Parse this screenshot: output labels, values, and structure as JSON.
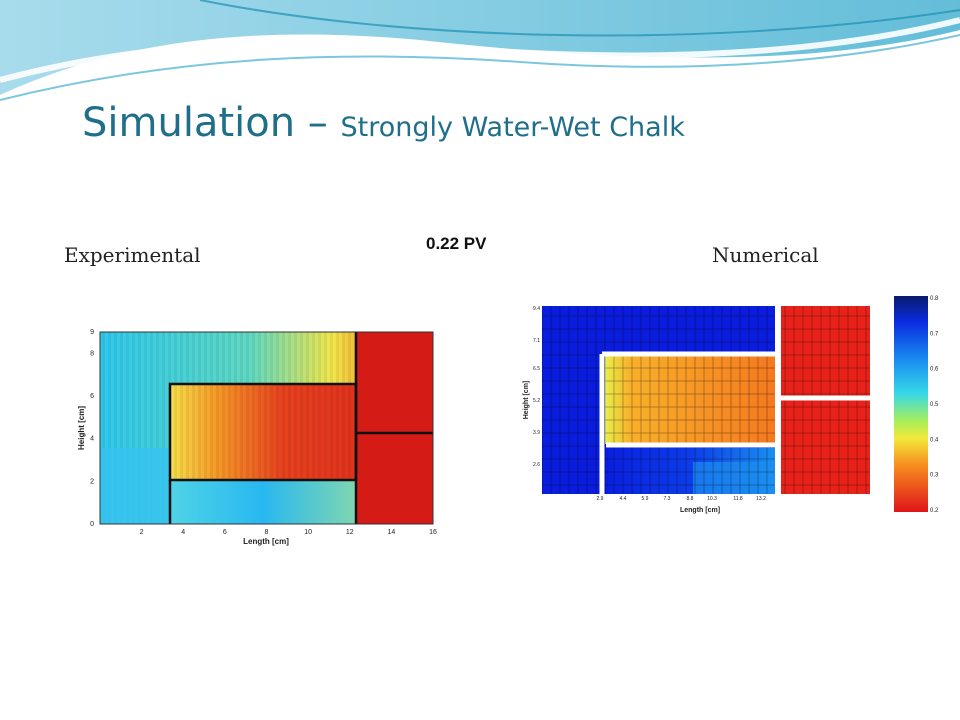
{
  "slide": {
    "title_main": "Simulation – ",
    "title_sub": "Strongly Water-Wet Chalk",
    "label_left": "Experimental",
    "label_center": "0.22 PV",
    "label_right": "Numerical",
    "accent_color": "#1f6f8b"
  },
  "chart_data": [
    {
      "type": "heatmap",
      "title": "",
      "xlabel": "Length [cm]",
      "ylabel": "Height [cm]",
      "xlim": [
        0,
        16
      ],
      "ylim": [
        0,
        9
      ],
      "x_ticks": [
        "2",
        "4",
        "6",
        "8",
        "10",
        "12",
        "14",
        "16"
      ],
      "y_ticks": [
        "0",
        "2",
        "4",
        "6",
        "8",
        "9"
      ],
      "color_scale": "jet"
    },
    {
      "type": "heatmap",
      "title": "",
      "xlabel": "Length [cm]",
      "ylabel": "Height [cm]",
      "x_ticks": [
        "2.9",
        "4.4",
        "5.9",
        "7.3",
        "8.8",
        "10.3",
        "11.8",
        "13.2"
      ],
      "y_ticks": [
        "9.4",
        "7.1",
        "6.5",
        "5.2",
        "3.9",
        "2.6"
      ],
      "colorbar_ticks": [
        "0.8",
        "0.7",
        "0.6",
        "0.5",
        "0.4",
        "0.3",
        "0.2"
      ],
      "color_scale": "jet"
    }
  ]
}
